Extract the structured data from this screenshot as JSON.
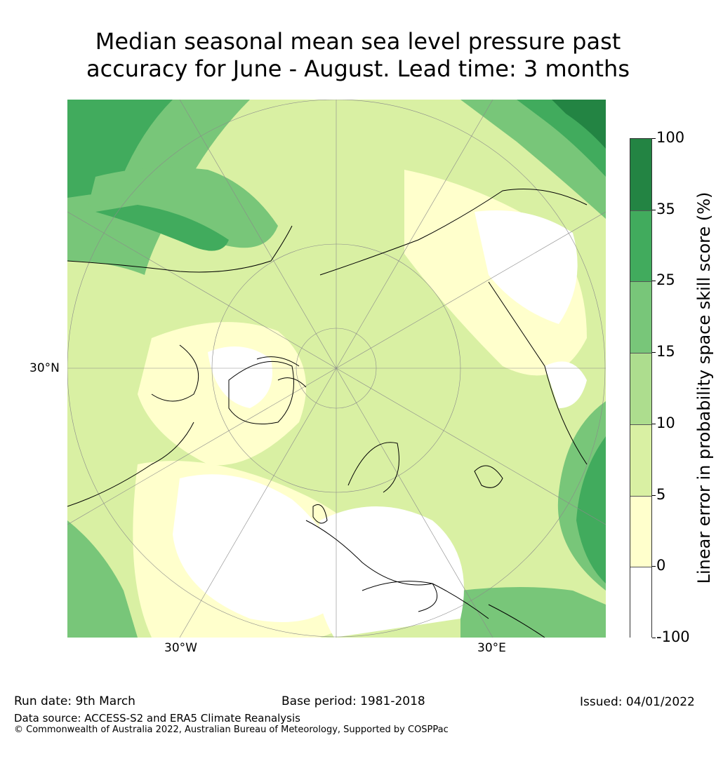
{
  "title": {
    "line1": "Median seasonal mean sea level pressure past",
    "line2": "accuracy for June - August. Lead time: 3 months"
  },
  "map": {
    "projection": "north-polar-stereographic",
    "axis_labels": {
      "lat": "30°N",
      "lon_west": "30°W",
      "lon_east": "30°E"
    }
  },
  "colorbar": {
    "label": "Linear error in probability space skill score (%)",
    "ticks": [
      "100",
      "35",
      "25",
      "15",
      "10",
      "5",
      "0",
      "-100"
    ],
    "classes": [
      {
        "range": "35 to 100",
        "color": "#238443"
      },
      {
        "range": "25 to 35",
        "color": "#41ab5d"
      },
      {
        "range": "15 to 25",
        "color": "#78c679"
      },
      {
        "range": "10 to 15",
        "color": "#addd8e"
      },
      {
        "range": "5 to 10",
        "color": "#d9f0a3"
      },
      {
        "range": "0 to 5",
        "color": "#ffffcc"
      },
      {
        "range": "-100 to 0",
        "color": "#ffffff"
      }
    ]
  },
  "footer": {
    "run_date": "Run date: 9th March",
    "base_period": "Base period: 1981-2018",
    "issued": "Issued: 04/01/2022",
    "data_source": "Data source: ACCESS-S2 and ERA5 Climate Reanalysis",
    "copyright": "© Commonwealth of Australia 2022, Australian Bureau of Meteorology, Supported by COSPPac"
  }
}
